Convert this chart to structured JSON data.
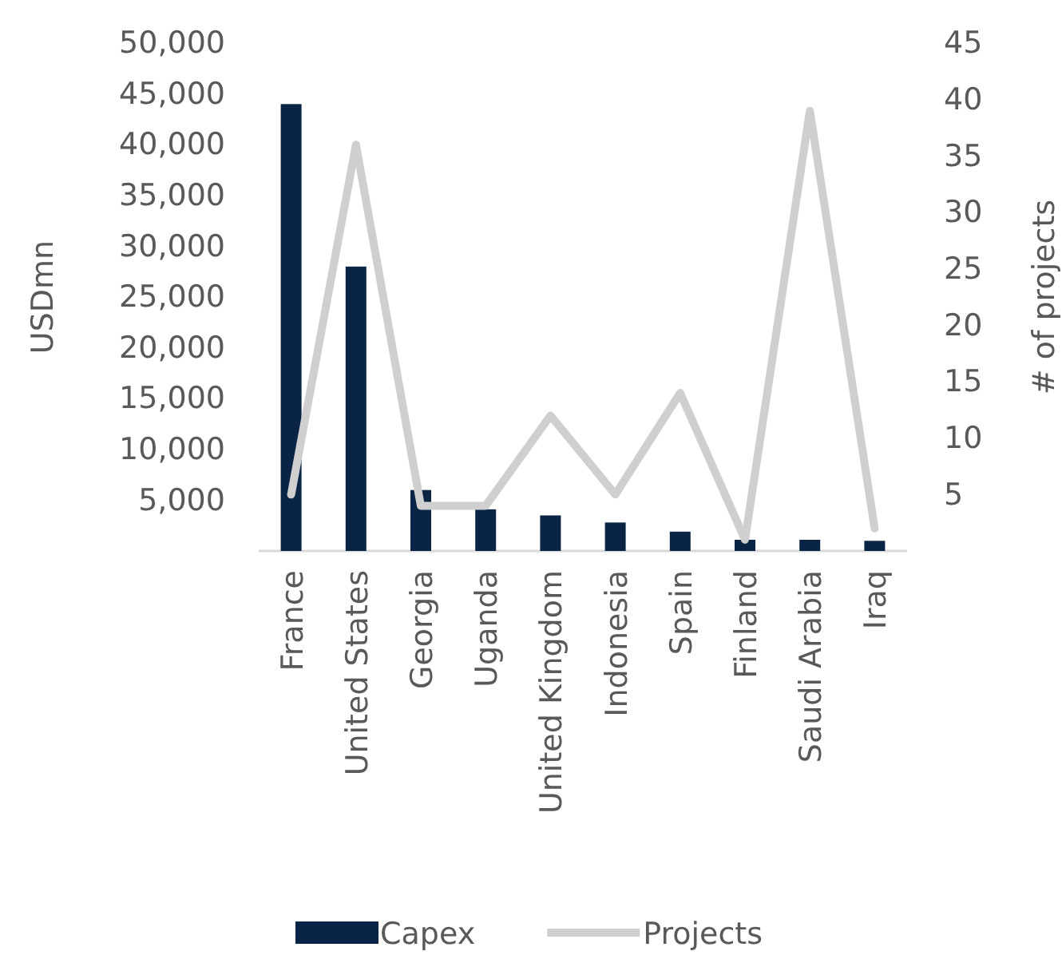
{
  "chart_data": {
    "type": "bar",
    "ylabel": "USDmn",
    "y2label": "# of projects",
    "categories": [
      "France",
      "United States",
      "Georgia",
      "Uganda",
      "United Kingdom",
      "Indonesia",
      "Spain",
      "Finland",
      "Saudi Arabia",
      "Iraq"
    ],
    "series": [
      {
        "name": "Capex",
        "color": "#0a2446",
        "values": [
          44000,
          28000,
          6000,
          4100,
          3500,
          2800,
          1900,
          1100,
          1100,
          1000
        ]
      },
      {
        "name": "Projects",
        "type": "line",
        "axis": "y2",
        "color": "#cfcfcf",
        "values": [
          5,
          36,
          4,
          4,
          12,
          5,
          14,
          1,
          39,
          2
        ]
      }
    ],
    "ylim": [
      0,
      50000
    ],
    "yticks": [
      {
        "value": 5000,
        "label": "5,000"
      },
      {
        "value": 10000,
        "label": "10,000"
      },
      {
        "value": 15000,
        "label": "15,000"
      },
      {
        "value": 20000,
        "label": "20,000"
      },
      {
        "value": 25000,
        "label": "25,000"
      },
      {
        "value": 30000,
        "label": "30,000"
      },
      {
        "value": 35000,
        "label": "35,000"
      },
      {
        "value": 40000,
        "label": "40,000"
      },
      {
        "value": 45000,
        "label": "45,000"
      },
      {
        "value": 50000,
        "label": "50,000"
      }
    ],
    "y2lim": [
      0,
      45
    ],
    "y2ticks": [
      5,
      10,
      15,
      20,
      25,
      30,
      35,
      40,
      45
    ],
    "grid": false,
    "legend": "bottom",
    "marker": "none",
    "line_style": "solid"
  }
}
